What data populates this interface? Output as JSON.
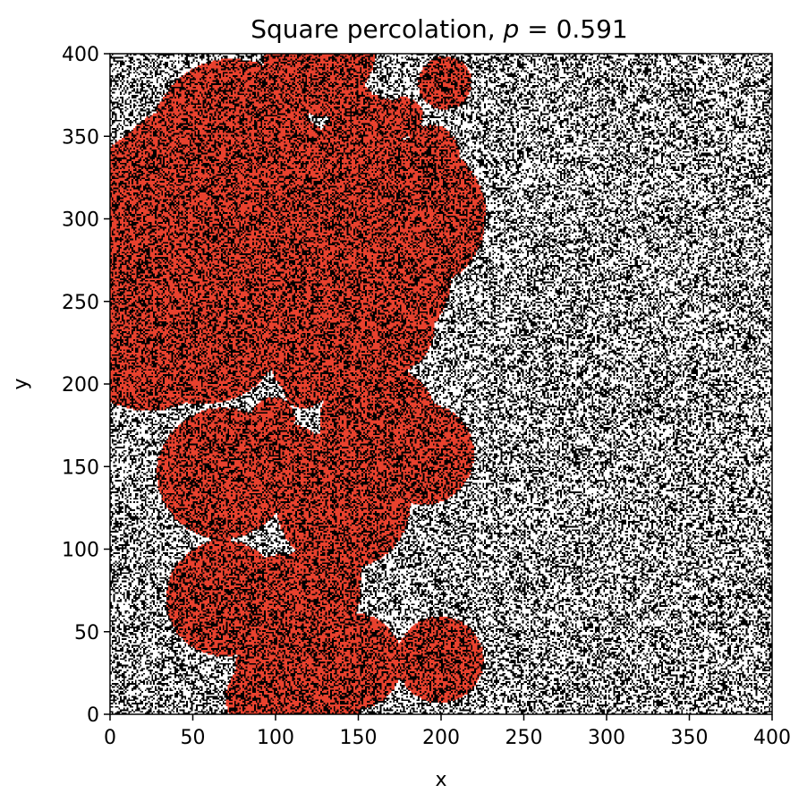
{
  "chart_data": {
    "type": "heatmap",
    "title": {
      "prefix": "Square percolation, ",
      "variable": "p",
      "equals": " = ",
      "value": "0.591"
    },
    "p": 0.591,
    "lattice_size": 400,
    "xlabel": "x",
    "ylabel": "y",
    "xlim": [
      0,
      400
    ],
    "ylim": [
      0,
      400
    ],
    "x_ticks": [
      "0",
      "50",
      "100",
      "150",
      "200",
      "250",
      "300",
      "350",
      "400"
    ],
    "y_ticks": [
      "0",
      "50",
      "100",
      "150",
      "200",
      "250",
      "300",
      "350",
      "400"
    ],
    "colors": {
      "empty_site": "#000000",
      "occupied_site": "#ffffff",
      "spanning_cluster": "#e8412e",
      "axes": "#000000"
    },
    "spanning_cluster_approx_region": [
      {
        "x": [
          70,
          230
        ],
        "y": [
          330,
          400
        ]
      },
      {
        "x": [
          0,
          190
        ],
        "y": [
          220,
          370
        ]
      },
      {
        "x": [
          85,
          130
        ],
        "y": [
          150,
          220
        ]
      },
      {
        "x": [
          60,
          190
        ],
        "y": [
          70,
          180
        ]
      },
      {
        "x": [
          85,
          205
        ],
        "y": [
          0,
          75
        ]
      }
    ]
  }
}
